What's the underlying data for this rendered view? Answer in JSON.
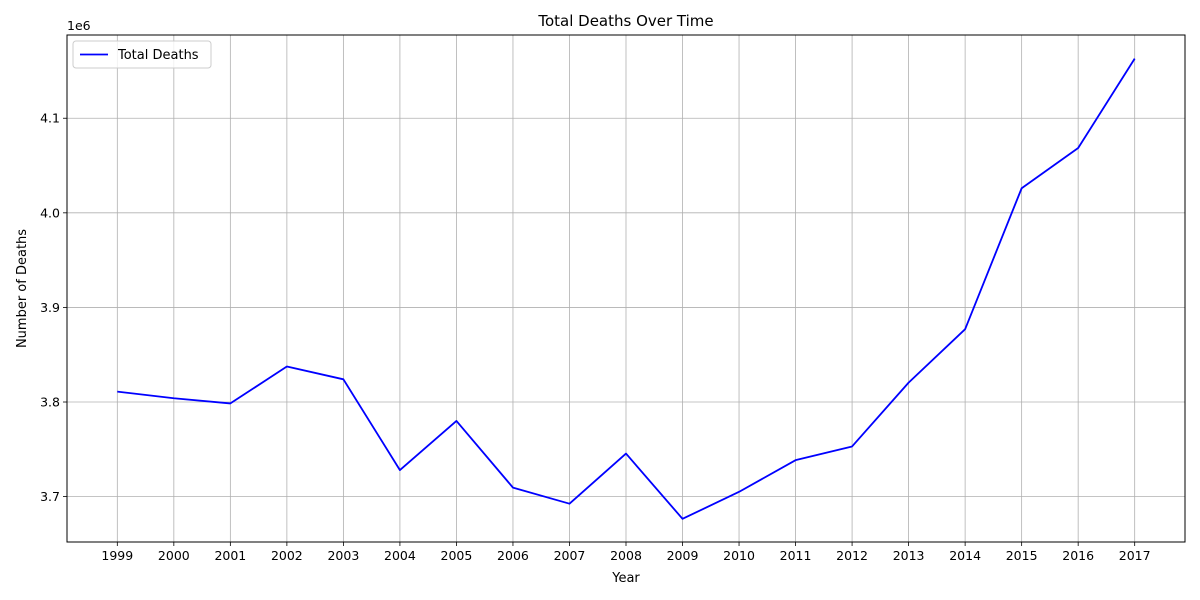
{
  "chart_data": {
    "type": "line",
    "title": "Total Deaths Over Time",
    "xlabel": "Year",
    "ylabel": "Number of Deaths",
    "y_offset_label": "1e6",
    "x": [
      "1999",
      "2000",
      "2001",
      "2002",
      "2003",
      "2004",
      "2005",
      "2006",
      "2007",
      "2008",
      "2009",
      "2010",
      "2011",
      "2012",
      "2013",
      "2014",
      "2015",
      "2016",
      "2017"
    ],
    "series": [
      {
        "name": "Total Deaths",
        "color": "#0000ff",
        "values": [
          3811000,
          3804000,
          3798500,
          3837500,
          3824000,
          3728000,
          3780000,
          3709500,
          3692500,
          3745500,
          3676500,
          3705000,
          3738500,
          3753000,
          3820500,
          3877000,
          4026000,
          4068500,
          4163000
        ]
      }
    ],
    "ylim": [
      3652000,
      4188000
    ],
    "y_ticks": [
      3700000,
      3800000,
      3900000,
      4000000,
      4100000
    ],
    "y_tick_labels": [
      "3.7",
      "3.8",
      "3.9",
      "4.0",
      "4.1"
    ],
    "grid": true,
    "legend_position": "upper-left"
  }
}
